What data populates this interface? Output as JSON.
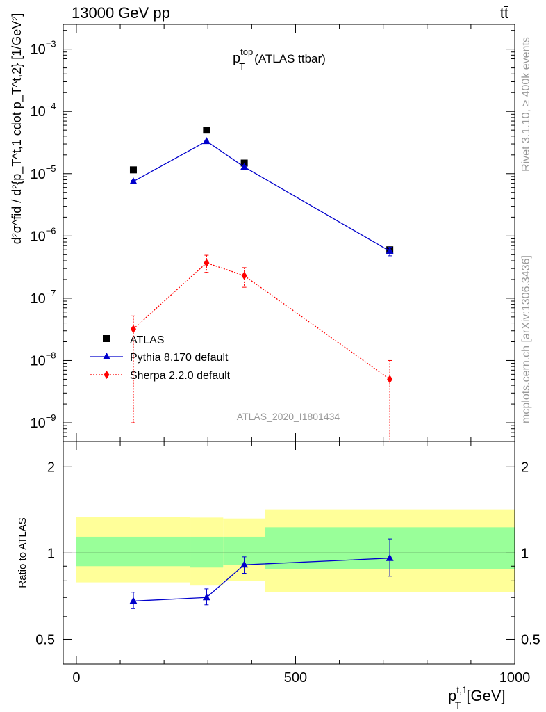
{
  "header": {
    "energy_label": "13000 GeV pp",
    "process_label": "tt̄"
  },
  "side_labels": {
    "rivet": "Rivet 3.1.10, ≥ 400k events",
    "mcplots": "mcplots.cern.ch [arXiv:1306.3436]"
  },
  "chart_data": [
    {
      "type": "scatter",
      "panel": "main",
      "title_main": "p",
      "title_sup": "top",
      "title_sub": "T",
      "title_rest": "(ATLAS ttbar)",
      "ylabel": "d²σ^fid / d²{p_T^t,1 cdot p_T^t,2} [1/GeV²]",
      "yscale": "log",
      "ylim": [
        5e-10,
        0.0025
      ],
      "xlim": [
        -30,
        1000
      ],
      "y_ticks": [
        {
          "value": 0.001,
          "base": "10",
          "exp": "−3"
        },
        {
          "value": 0.0001,
          "base": "10",
          "exp": "−4"
        },
        {
          "value": 1e-05,
          "base": "10",
          "exp": "−5"
        },
        {
          "value": 1e-06,
          "base": "10",
          "exp": "−6"
        },
        {
          "value": 1e-07,
          "base": "10",
          "exp": "−7"
        },
        {
          "value": 1e-08,
          "base": "10",
          "exp": "−8"
        },
        {
          "value": 1e-09,
          "base": "10",
          "exp": "−9"
        }
      ],
      "watermark": "ATLAS_2020_I1801434",
      "legend": {
        "position": "bottom-left",
        "entries": [
          "ATLAS",
          "Pythia 8.170 default",
          "Sherpa 2.2.0 default"
        ]
      },
      "series": [
        {
          "name": "ATLAS",
          "style": "square",
          "color": "#000000",
          "x": [
            130,
            297,
            383,
            715
          ],
          "y": [
            1.15e-05,
            5e-05,
            1.48e-05,
            6e-07
          ]
        },
        {
          "name": "Pythia 8.170 default",
          "style": "triangle",
          "color": "#0000cc",
          "x": [
            130,
            297,
            383,
            715
          ],
          "y": [
            7.5e-06,
            3.32e-05,
            1.28e-05,
            5.7e-07
          ],
          "err_lo": [
            7.2e-06,
            3.22e-05,
            1.23e-05,
            4.8e-07
          ],
          "err_hi": [
            7.8e-06,
            3.42e-05,
            1.33e-05,
            6.6e-07
          ]
        },
        {
          "name": "Sherpa 2.2.0 default",
          "style": "diamond",
          "color": "#ff0000",
          "x": [
            130,
            297,
            383,
            715
          ],
          "y": [
            3.2e-08,
            3.7e-07,
            2.3e-07,
            5e-09
          ],
          "err_lo": [
            1e-09,
            2.6e-07,
            1.5e-07,
            4e-10
          ],
          "err_hi": [
            5.2e-08,
            4.9e-07,
            3.1e-07,
            1e-08
          ]
        }
      ]
    },
    {
      "type": "line",
      "panel": "ratio",
      "ylabel": "Ratio to ATLAS",
      "yscale": "log",
      "ylim": [
        0.41,
        2.45
      ],
      "y_ticks": [
        {
          "value": 2,
          "label": "2"
        },
        {
          "value": 1,
          "label": "1"
        },
        {
          "value": 0.5,
          "label": "0.5"
        }
      ],
      "x_ticks": [
        {
          "value": 0,
          "label": "0"
        },
        {
          "value": 500,
          "label": "500"
        },
        {
          "value": 1000,
          "label": "1000"
        }
      ],
      "xlabel_main": "p",
      "xlabel_sup": "t,1",
      "xlabel_sub": "T",
      "xlabel_unit": "[GeV]",
      "bands": [
        {
          "x0": 0,
          "x1": 260,
          "green": [
            0.9,
            1.14
          ],
          "yellow": [
            0.79,
            1.34
          ]
        },
        {
          "x0": 260,
          "x1": 335,
          "green": [
            0.89,
            1.14
          ],
          "yellow": [
            0.77,
            1.33
          ]
        },
        {
          "x0": 335,
          "x1": 430,
          "green": [
            0.91,
            1.14
          ],
          "yellow": [
            0.8,
            1.32
          ]
        },
        {
          "x0": 430,
          "x1": 1000,
          "green": [
            0.88,
            1.23
          ],
          "yellow": [
            0.73,
            1.42
          ]
        }
      ],
      "series": [
        {
          "name": "Pythia 8.170 default",
          "color": "#0000cc",
          "x": [
            130,
            297,
            383,
            715
          ],
          "y": [
            0.68,
            0.7,
            0.91,
            0.96
          ],
          "err_lo": [
            0.64,
            0.66,
            0.85,
            0.83
          ],
          "err_hi": [
            0.73,
            0.75,
            0.97,
            1.12
          ]
        }
      ]
    }
  ]
}
